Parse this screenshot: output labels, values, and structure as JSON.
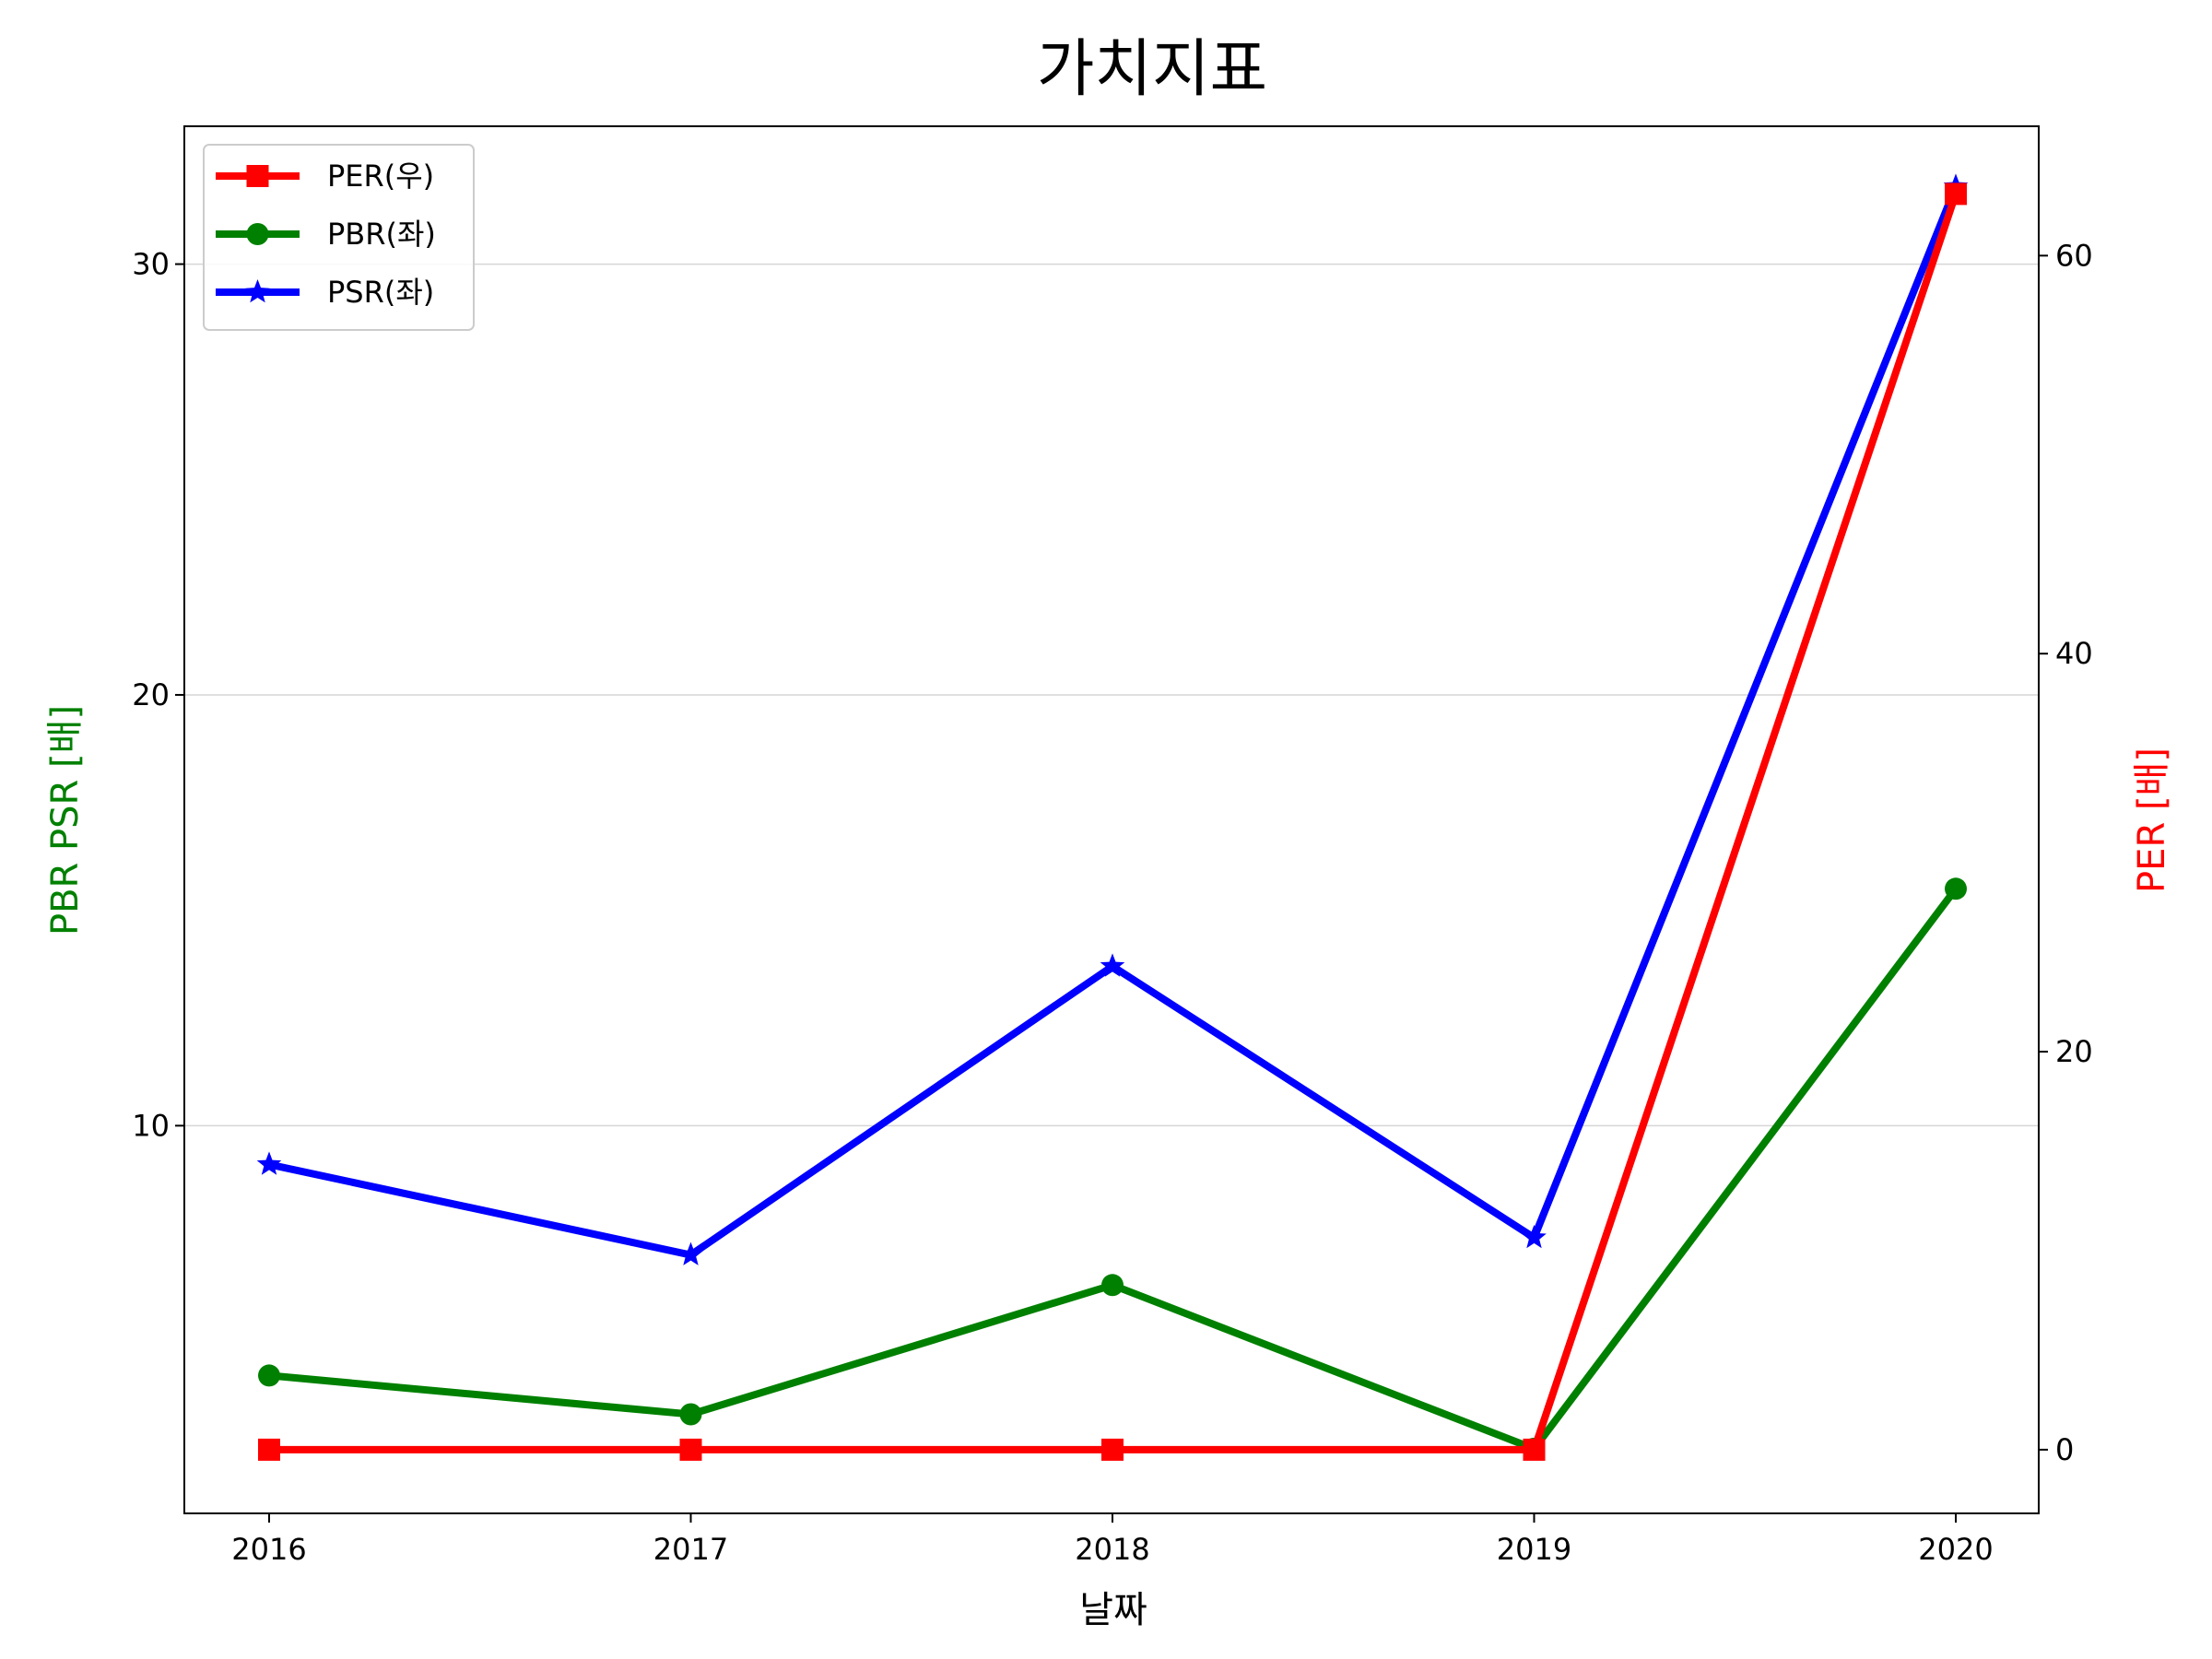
{
  "chart_data": {
    "type": "line",
    "title": "가치지표",
    "xlabel": "날짜",
    "ylabel_left": "PBR PSR [배]",
    "ylabel_right": "PER [배]",
    "categories": [
      "2016",
      "2017",
      "2018",
      "2019",
      "2020"
    ],
    "ylim_left": [
      1.0,
      33.2
    ],
    "ylim_right": [
      -3.2,
      66.5
    ],
    "yticks_left": [
      10,
      20,
      30
    ],
    "yticks_right": [
      0,
      20,
      40,
      60
    ],
    "grid": "horizontal-left",
    "legend_position": "top-left",
    "series": [
      {
        "name": "PER(우)",
        "axis": "right",
        "color": "#ff0000",
        "marker": "square",
        "values": [
          0,
          0,
          0,
          0,
          63.1
        ]
      },
      {
        "name": "PBR(좌)",
        "axis": "left",
        "color": "#008000",
        "marker": "circle",
        "values": [
          4.2,
          3.3,
          6.3,
          2.5,
          15.5
        ]
      },
      {
        "name": "PSR(좌)",
        "axis": "left",
        "color": "#0000ff",
        "marker": "star",
        "values": [
          9.1,
          7.0,
          13.7,
          7.4,
          31.8
        ]
      }
    ]
  }
}
